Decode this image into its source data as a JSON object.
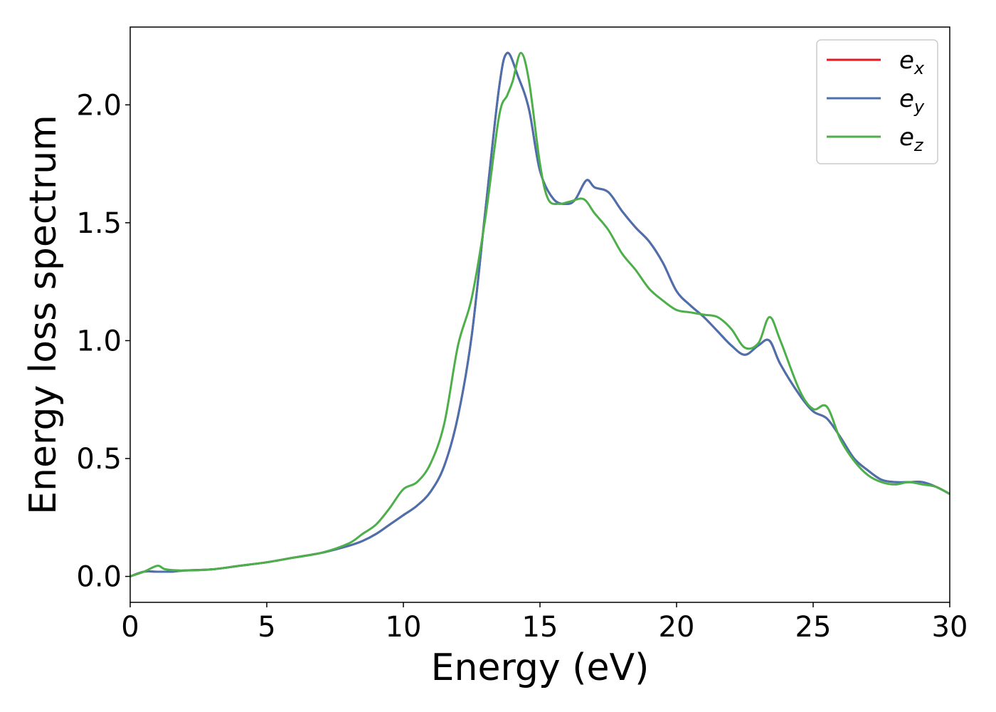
{
  "chart_data": {
    "type": "line",
    "xlabel": "Energy (eV)",
    "ylabel": "Energy loss spectrum",
    "xlim": [
      0,
      30
    ],
    "ylim": [
      -0.11,
      2.33
    ],
    "xticks": [
      0,
      5,
      10,
      15,
      20,
      25,
      30
    ],
    "xtick_labels": [
      "0",
      "5",
      "10",
      "15",
      "20",
      "25",
      "30"
    ],
    "yticks": [
      0.0,
      0.5,
      1.0,
      1.5,
      2.0
    ],
    "ytick_labels": [
      "0.0",
      "0.5",
      "1.0",
      "1.5",
      "2.0"
    ],
    "grid": false,
    "legend_position": "top-right",
    "series": [
      {
        "name": "e_x",
        "legend_base": "e",
        "legend_sub": "x",
        "color": "#e41a1c",
        "x": [
          0,
          0.5,
          1,
          1.5,
          2,
          3,
          4,
          5,
          6,
          7,
          8,
          8.5,
          9,
          9.5,
          10,
          10.5,
          11,
          11.5,
          12,
          12.5,
          13,
          13.5,
          13.8,
          14.2,
          14.6,
          15,
          15.5,
          16,
          16.3,
          16.7,
          17,
          17.5,
          18,
          18.5,
          19,
          19.5,
          20,
          20.5,
          21,
          21.5,
          22,
          22.5,
          23,
          23.4,
          23.8,
          24.5,
          25,
          25.5,
          26,
          26.5,
          27,
          27.5,
          28,
          28.5,
          29,
          29.5,
          30
        ],
        "y": [
          0.0,
          0.02,
          0.02,
          0.02,
          0.025,
          0.03,
          0.045,
          0.06,
          0.08,
          0.1,
          0.13,
          0.15,
          0.18,
          0.22,
          0.26,
          0.3,
          0.36,
          0.47,
          0.68,
          1.02,
          1.55,
          2.07,
          2.22,
          2.12,
          1.98,
          1.72,
          1.6,
          1.58,
          1.6,
          1.68,
          1.65,
          1.63,
          1.55,
          1.48,
          1.42,
          1.33,
          1.21,
          1.15,
          1.1,
          1.04,
          0.98,
          0.94,
          0.98,
          1.0,
          0.9,
          0.77,
          0.7,
          0.67,
          0.59,
          0.5,
          0.45,
          0.41,
          0.4,
          0.4,
          0.4,
          0.38,
          0.35
        ]
      },
      {
        "name": "e_y",
        "legend_base": "e",
        "legend_sub": "y",
        "color": "#4a71ae",
        "x": [
          0,
          0.5,
          1,
          1.5,
          2,
          3,
          4,
          5,
          6,
          7,
          8,
          8.5,
          9,
          9.5,
          10,
          10.5,
          11,
          11.5,
          12,
          12.5,
          13,
          13.5,
          13.8,
          14.2,
          14.6,
          15,
          15.5,
          16,
          16.3,
          16.7,
          17,
          17.5,
          18,
          18.5,
          19,
          19.5,
          20,
          20.5,
          21,
          21.5,
          22,
          22.5,
          23,
          23.4,
          23.8,
          24.5,
          25,
          25.5,
          26,
          26.5,
          27,
          27.5,
          28,
          28.5,
          29,
          29.5,
          30
        ],
        "y": [
          0.0,
          0.02,
          0.02,
          0.02,
          0.025,
          0.03,
          0.045,
          0.06,
          0.08,
          0.1,
          0.13,
          0.15,
          0.18,
          0.22,
          0.26,
          0.3,
          0.36,
          0.47,
          0.68,
          1.02,
          1.55,
          2.07,
          2.22,
          2.12,
          1.98,
          1.72,
          1.6,
          1.58,
          1.6,
          1.68,
          1.65,
          1.63,
          1.55,
          1.48,
          1.42,
          1.33,
          1.21,
          1.15,
          1.1,
          1.04,
          0.98,
          0.94,
          0.98,
          1.0,
          0.9,
          0.77,
          0.7,
          0.67,
          0.59,
          0.5,
          0.45,
          0.41,
          0.4,
          0.4,
          0.4,
          0.38,
          0.35
        ]
      },
      {
        "name": "e_z",
        "legend_base": "e",
        "legend_sub": "z",
        "color": "#4daf4a",
        "x": [
          0,
          0.5,
          1,
          1.3,
          2,
          3,
          4,
          5,
          6,
          7,
          8,
          8.5,
          9,
          9.5,
          10,
          10.5,
          11,
          11.5,
          12,
          12.5,
          13,
          13.5,
          13.8,
          14.0,
          14.3,
          14.6,
          15,
          15.3,
          15.7,
          16.1,
          16.6,
          17.0,
          17.5,
          18,
          18.5,
          19,
          19.5,
          20,
          20.5,
          21,
          21.5,
          22,
          22.5,
          23,
          23.4,
          23.8,
          24.5,
          25,
          25.5,
          26,
          26.5,
          27,
          27.5,
          28,
          28.5,
          29,
          29.5,
          30
        ],
        "y": [
          0.0,
          0.02,
          0.045,
          0.03,
          0.025,
          0.03,
          0.045,
          0.06,
          0.08,
          0.1,
          0.14,
          0.18,
          0.22,
          0.29,
          0.37,
          0.4,
          0.48,
          0.65,
          0.98,
          1.18,
          1.52,
          1.95,
          2.04,
          2.1,
          2.22,
          2.1,
          1.75,
          1.6,
          1.58,
          1.59,
          1.6,
          1.54,
          1.47,
          1.37,
          1.3,
          1.22,
          1.17,
          1.13,
          1.12,
          1.11,
          1.1,
          1.05,
          0.97,
          0.99,
          1.1,
          1.0,
          0.79,
          0.71,
          0.72,
          0.58,
          0.49,
          0.43,
          0.4,
          0.39,
          0.4,
          0.39,
          0.38,
          0.35
        ]
      }
    ]
  }
}
